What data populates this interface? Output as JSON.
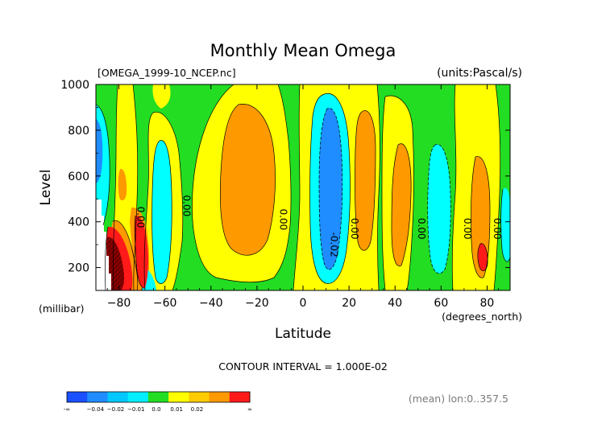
{
  "chart_data": {
    "type": "heatmap",
    "title": "Monthly Mean Omega",
    "file_label": "[OMEGA_1999-10_NCEP.nc]",
    "units_label": "(units:Pascal/s)",
    "xlabel": "Latitude",
    "x_units": "(degrees_north)",
    "ylabel": "Level",
    "y_units": "(millibar)",
    "xlim": [
      -90,
      90
    ],
    "ylim": [
      1000,
      100
    ],
    "x_ticks": [
      -80,
      -60,
      -40,
      -20,
      0,
      20,
      40,
      60,
      80
    ],
    "x_tick_labels": [
      "−80",
      "−60",
      "−40",
      "−20",
      "0",
      "20",
      "40",
      "60",
      "80"
    ],
    "y_ticks": [
      200,
      400,
      600,
      800,
      1000
    ],
    "y_tick_labels": [
      "200",
      "400",
      "600",
      "800",
      "1000"
    ],
    "contour_interval_text": "CONTOUR INTERVAL = 1.000E-02",
    "footer_note": "(mean) lon:0..357.5",
    "contour_labels": [
      {
        "text": "0.00",
        "lat": -72,
        "level": 420
      },
      {
        "text": "0.00",
        "lat": -52,
        "level": 470
      },
      {
        "text": "0.00",
        "lat": -10,
        "level": 410
      },
      {
        "text": "-0.02",
        "lat": 12,
        "level": 300
      },
      {
        "text": "0.00",
        "lat": 21,
        "level": 370
      },
      {
        "text": "0.00",
        "lat": 50,
        "level": 370
      },
      {
        "text": "0.00",
        "lat": 70,
        "level": 370
      },
      {
        "text": "0.00",
        "lat": 83,
        "level": 370
      }
    ],
    "colorbar": {
      "colors": [
        "#1a50ff",
        "#1f8cff",
        "#00c8ff",
        "#00eeff",
        "#22dd22",
        "#ffff00",
        "#ffcc00",
        "#ff9900",
        "#ff1a1a"
      ],
      "labels": [
        "-∞",
        "−0.04",
        "−0.02",
        "−0.01",
        "0.0",
        "0.01",
        "0.02",
        "∞"
      ]
    },
    "band_colors": {
      "blue": "#1f8cff",
      "cyan": "#00ffff",
      "green": "#22dd22",
      "yellow": "#ffff00",
      "orange": "#ff9900",
      "red": "#ff1a1a",
      "dark_red": "#8b0000",
      "missing": "#ffffff"
    }
  }
}
